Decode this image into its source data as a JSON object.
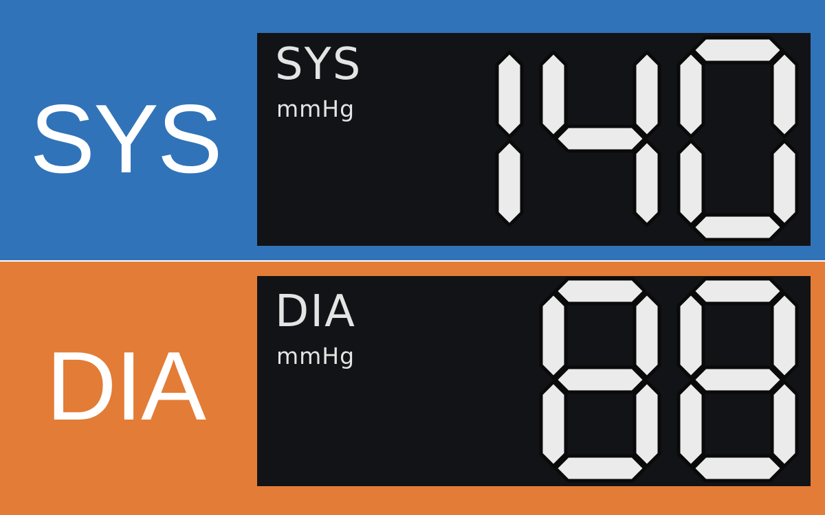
{
  "colors": {
    "systolic_band": "#3173b8",
    "diastolic_band": "#e37c36",
    "lcd_background": "#121316",
    "lcd_segment": "#ebebeb",
    "label_text": "#ffffff"
  },
  "systolic": {
    "side_label": "SYS",
    "lcd_title": "SYS",
    "unit": "mmHg",
    "reading": "140"
  },
  "diastolic": {
    "side_label": "DIA",
    "lcd_title": "DIA",
    "unit": "mmHg",
    "reading": "88"
  }
}
